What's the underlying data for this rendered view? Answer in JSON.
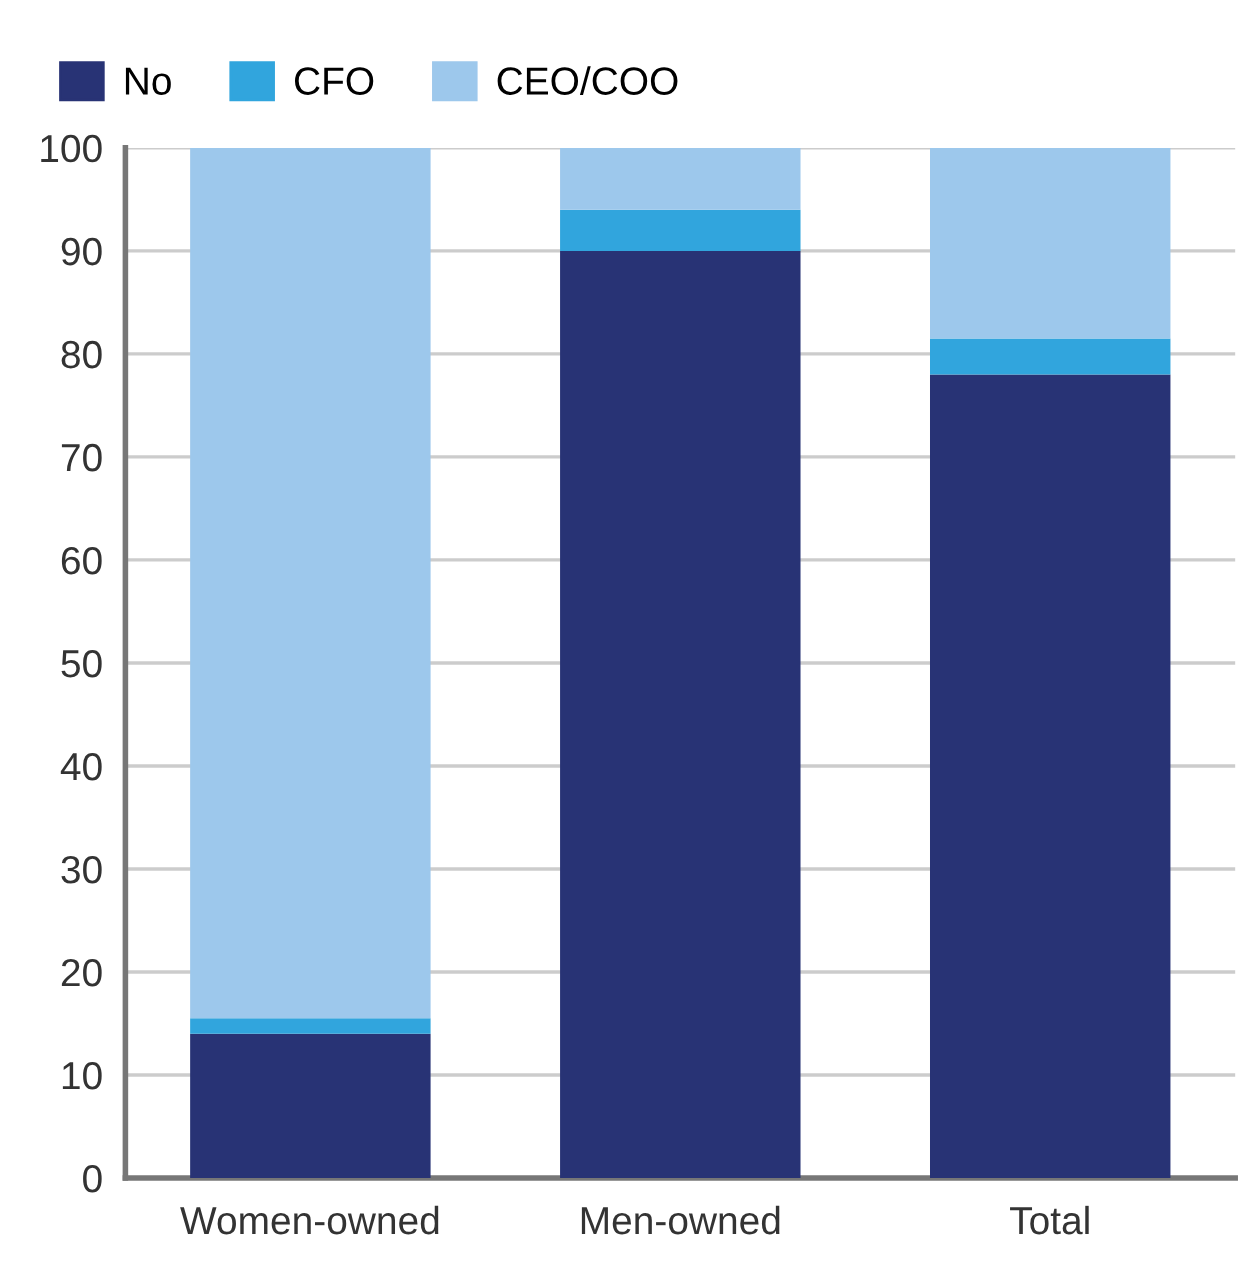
{
  "chart_data": {
    "type": "bar",
    "stacked": true,
    "categories": [
      "Women-owned",
      "Men-owned",
      "Total"
    ],
    "series": [
      {
        "name": "No",
        "color": "#283375",
        "values": [
          14,
          90,
          78
        ]
      },
      {
        "name": "CFO",
        "color": "#31a5dd",
        "values": [
          1.5,
          4,
          3.5
        ]
      },
      {
        "name": "CEO/COO",
        "color": "#9dc8ec",
        "values": [
          84.5,
          6,
          18.5
        ]
      }
    ],
    "ylim": [
      0,
      100
    ],
    "yticks": [
      0,
      10,
      20,
      30,
      40,
      50,
      60,
      70,
      80,
      90,
      100
    ],
    "grid": "y",
    "legend": "top left"
  }
}
